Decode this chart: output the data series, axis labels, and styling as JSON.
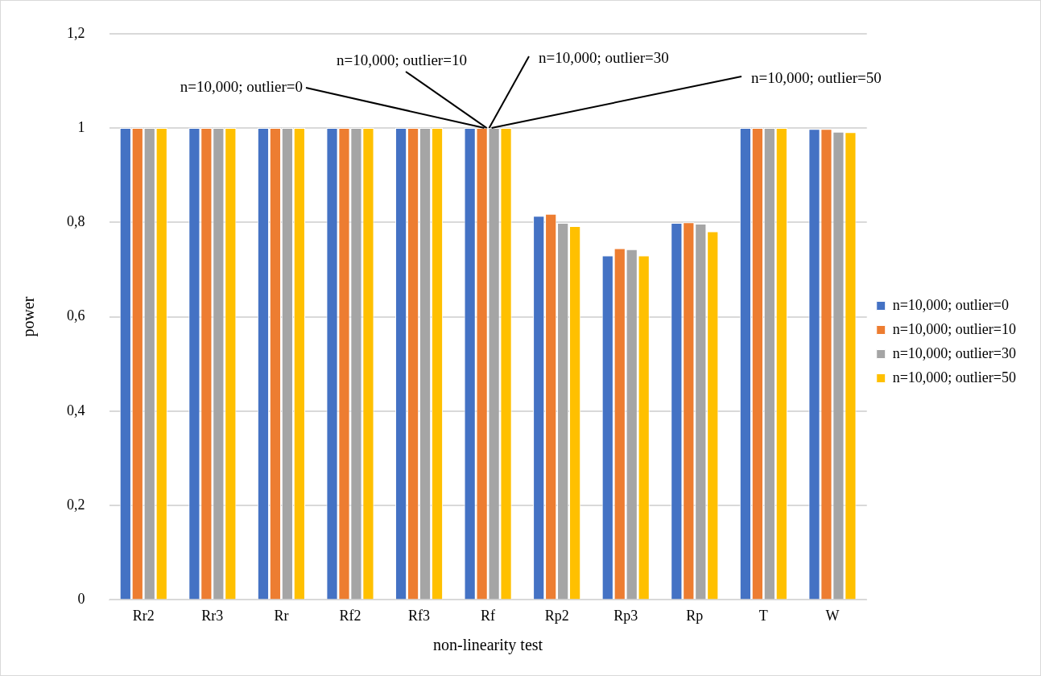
{
  "chart_data": {
    "type": "bar",
    "xlabel": "non-linearity test",
    "ylabel": "power",
    "categories": [
      "Rr2",
      "Rr3",
      "Rr",
      "Rf2",
      "Rf3",
      "Rf",
      "Rp2",
      "Rp3",
      "Rp",
      "T",
      "W"
    ],
    "series": [
      {
        "name": "n=10,000; outlier=0",
        "color": "#4472c4",
        "values": [
          1,
          1,
          1,
          1,
          1,
          1,
          0.814,
          0.73,
          0.799,
          1,
          0.998
        ]
      },
      {
        "name": "n=10,000; outlier=10",
        "color": "#ed7d31",
        "values": [
          1,
          1,
          1,
          1,
          1,
          1,
          0.818,
          0.745,
          0.8,
          1,
          0.998
        ]
      },
      {
        "name": "n=10,000; outlier=30",
        "color": "#a5a5a5",
        "values": [
          1,
          1,
          1,
          1,
          1,
          1,
          0.799,
          0.743,
          0.797,
          1,
          0.992
        ]
      },
      {
        "name": "n=10,000; outlier=50",
        "color": "#ffc000",
        "values": [
          1,
          1,
          1,
          1,
          1,
          1,
          0.792,
          0.73,
          0.781,
          1,
          0.991
        ]
      }
    ],
    "ylim": [
      0,
      1.2
    ],
    "yticks": [
      0,
      {
        "value": 0.2,
        "label": "0,2"
      },
      {
        "value": 0.4,
        "label": "0,4"
      },
      {
        "value": 0.6,
        "label": "0,6"
      },
      {
        "value": 0.8,
        "label": "0,8"
      },
      1,
      {
        "value": 1.2,
        "label": "1,2"
      }
    ],
    "grid": "y",
    "legend": "right",
    "annotations": [
      {
        "text": "n=10,000; outlier=0",
        "x": "Rf",
        "y": 1
      },
      {
        "text": "n=10,000; outlier=10",
        "x": "Rf",
        "y": 1
      },
      {
        "text": "n=10,000; outlier=30",
        "x": "Rf",
        "y": 1
      },
      {
        "text": "n=10,000; outlier=50",
        "x": "Rf",
        "y": 1
      }
    ]
  }
}
